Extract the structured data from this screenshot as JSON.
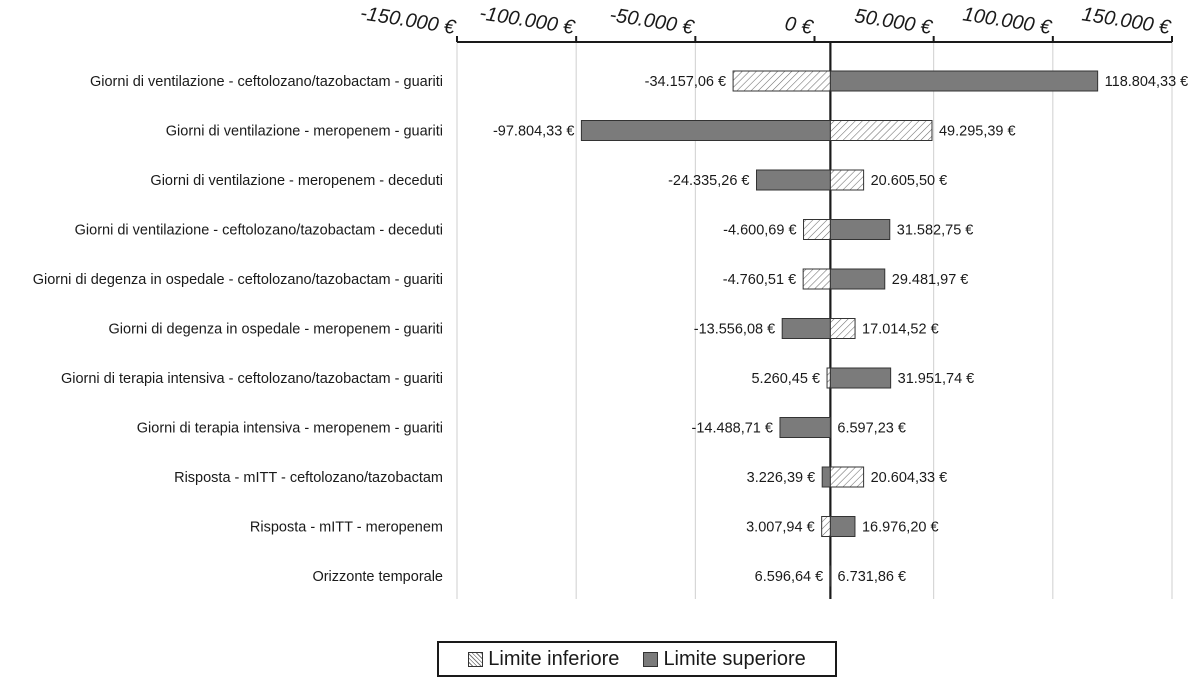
{
  "chart_data": {
    "type": "tornado",
    "base_value": 6664,
    "xlim": [
      -150000,
      150000
    ],
    "xticks": [
      -150000,
      -100000,
      -50000,
      0,
      50000,
      100000,
      150000
    ],
    "xtick_labels": [
      "-150.000 €",
      "-100.000 €",
      "-50.000 €",
      "0 €",
      "50.000 €",
      "100.000 €",
      "150.000 €"
    ],
    "grid": true,
    "legend_position": "bottom",
    "series": [
      {
        "name": "Limite inferiore",
        "fill": "hatched",
        "color": "#ffffff"
      },
      {
        "name": "Limite superiore",
        "fill": "solid",
        "color": "#7b7b7b"
      }
    ],
    "legend": {
      "lower": "Limite inferiore",
      "upper": "Limite superiore"
    },
    "rows": [
      {
        "label": "Giorni di ventilazione - ceftolozano/tazobactam - guariti",
        "left": -34157.06,
        "left_label": "-34.157,06 €",
        "left_series": "Limite inferiore",
        "right": 118804.33,
        "right_label": "118.804,33 €",
        "right_series": "Limite superiore"
      },
      {
        "label": "Giorni di ventilazione - meropenem - guariti",
        "left": -97804.33,
        "left_label": "-97.804,33 €",
        "left_series": "Limite superiore",
        "right": 49295.39,
        "right_label": "49.295,39 €",
        "right_series": "Limite inferiore"
      },
      {
        "label": "Giorni di ventilazione - meropenem - deceduti",
        "left": -24335.26,
        "left_label": "-24.335,26 €",
        "left_series": "Limite superiore",
        "right": 20605.5,
        "right_label": "20.605,50 €",
        "right_series": "Limite inferiore"
      },
      {
        "label": "Giorni di ventilazione - ceftolozano/tazobactam - deceduti",
        "left": -4600.69,
        "left_label": "-4.600,69 €",
        "left_series": "Limite inferiore",
        "right": 31582.75,
        "right_label": "31.582,75 €",
        "right_series": "Limite superiore"
      },
      {
        "label": "Giorni di degenza in ospedale - ceftolozano/tazobactam - guariti",
        "left": -4760.51,
        "left_label": "-4.760,51 €",
        "left_series": "Limite inferiore",
        "right": 29481.97,
        "right_label": "29.481,97 €",
        "right_series": "Limite superiore"
      },
      {
        "label": "Giorni di degenza in ospedale - meropenem - guariti",
        "left": -13556.08,
        "left_label": "-13.556,08 €",
        "left_series": "Limite superiore",
        "right": 17014.52,
        "right_label": "17.014,52 €",
        "right_series": "Limite inferiore"
      },
      {
        "label": "Giorni di terapia intensiva - ceftolozano/tazobactam - guariti",
        "left": 5260.45,
        "left_label": "5.260,45 €",
        "left_series": "Limite inferiore",
        "right": 31951.74,
        "right_label": "31.951,74 €",
        "right_series": "Limite superiore"
      },
      {
        "label": "Giorni di terapia intensiva - meropenem - guariti",
        "left": -14488.71,
        "left_label": "-14.488,71 €",
        "left_series": "Limite superiore",
        "right": 6597.23,
        "right_label": "6.597,23 €",
        "right_series": "Limite inferiore"
      },
      {
        "label": "Risposta - mITT - ceftolozano/tazobactam",
        "left": 3226.39,
        "left_label": "3.226,39 €",
        "left_series": "Limite superiore",
        "right": 20604.33,
        "right_label": "20.604,33 €",
        "right_series": "Limite inferiore"
      },
      {
        "label": "Risposta - mITT - meropenem",
        "left": 3007.94,
        "left_label": "3.007,94 €",
        "left_series": "Limite inferiore",
        "right": 16976.2,
        "right_label": "16.976,20 €",
        "right_series": "Limite superiore"
      },
      {
        "label": "Orizzonte temporale",
        "left": 6596.64,
        "left_label": "6.596,64 €",
        "left_series": "Limite inferiore",
        "right": 6731.86,
        "right_label": "6.731,86 €",
        "right_series": "Limite superiore"
      }
    ]
  }
}
